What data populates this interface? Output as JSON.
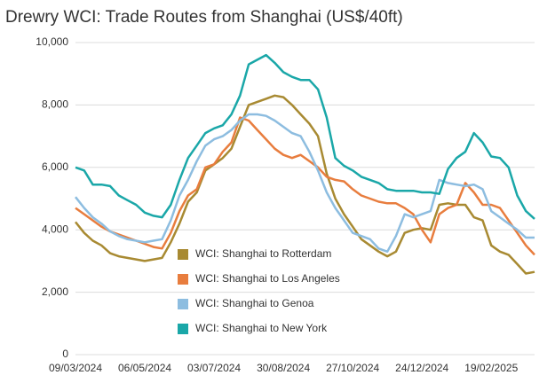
{
  "chart_data": {
    "type": "line",
    "title": "Drewry WCI: Trade Routes from Shanghai (US$/40ft)",
    "categories": [
      "09/03/2024",
      null,
      null,
      null,
      null,
      null,
      null,
      null,
      "06/05/2024",
      null,
      null,
      null,
      null,
      null,
      null,
      null,
      "03/07/2024",
      null,
      null,
      null,
      null,
      null,
      null,
      null,
      "30/08/2024",
      null,
      null,
      null,
      null,
      null,
      null,
      null,
      "27/10/2024",
      null,
      null,
      null,
      null,
      null,
      null,
      null,
      "24/12/2024",
      null,
      null,
      null,
      null,
      null,
      null,
      null,
      "19/02/2025",
      null,
      null,
      null,
      null,
      null
    ],
    "series": [
      {
        "name": "WCI: Shanghai to Rotterdam",
        "color": "#a88a32",
        "values": [
          4250,
          3900,
          3650,
          3500,
          3250,
          3150,
          3100,
          3050,
          3000,
          3050,
          3100,
          3600,
          4200,
          4900,
          5200,
          5900,
          6100,
          6300,
          6600,
          7300,
          8000,
          8100,
          8200,
          8300,
          8250,
          8000,
          7700,
          7400,
          7000,
          5800,
          5000,
          4500,
          4100,
          3700,
          3500,
          3300,
          3150,
          3300,
          3900,
          4000,
          4050,
          4000,
          4800,
          4850,
          4800,
          4800,
          4400,
          4300,
          3500,
          3300,
          3200,
          2900,
          2600,
          2650
        ]
      },
      {
        "name": "WCI: Shanghai to Los Angeles",
        "color": "#e87d3e",
        "values": [
          4700,
          4500,
          4300,
          4100,
          3950,
          3850,
          3750,
          3650,
          3550,
          3450,
          3400,
          3900,
          4600,
          5100,
          5300,
          6000,
          6100,
          6500,
          6800,
          7600,
          7500,
          7200,
          6900,
          6600,
          6400,
          6300,
          6400,
          6200,
          6000,
          5700,
          5600,
          5550,
          5300,
          5100,
          5000,
          4900,
          4850,
          4850,
          4700,
          4500,
          4000,
          3600,
          4500,
          4700,
          4800,
          5500,
          5200,
          4800,
          4800,
          4700,
          4300,
          3900,
          3500,
          3200
        ]
      },
      {
        "name": "WCI: Shanghai to Genoa",
        "color": "#8dbde0",
        "values": [
          5050,
          4700,
          4400,
          4200,
          3950,
          3800,
          3700,
          3650,
          3600,
          3650,
          3700,
          4300,
          5100,
          5600,
          6200,
          6700,
          6900,
          7000,
          7200,
          7500,
          7700,
          7700,
          7650,
          7500,
          7300,
          7100,
          7000,
          6500,
          5900,
          5200,
          4700,
          4300,
          3900,
          3800,
          3700,
          3400,
          3300,
          3800,
          4500,
          4400,
          4500,
          4600,
          5600,
          5500,
          5450,
          5400,
          5450,
          5300,
          4600,
          4400,
          4200,
          4000,
          3750,
          3750
        ]
      },
      {
        "name": "WCI: Shanghai to New York",
        "color": "#1aa7a8",
        "values": [
          6000,
          5900,
          5450,
          5450,
          5400,
          5100,
          4950,
          4800,
          4550,
          4450,
          4400,
          4800,
          5600,
          6300,
          6700,
          7100,
          7250,
          7350,
          7700,
          8300,
          9300,
          9450,
          9600,
          9350,
          9050,
          8900,
          8800,
          8800,
          8500,
          7600,
          6300,
          6050,
          5900,
          5700,
          5600,
          5500,
          5300,
          5250,
          5250,
          5250,
          5200,
          5200,
          5150,
          5950,
          6300,
          6500,
          7100,
          6800,
          6350,
          6300,
          6000,
          5100,
          4600,
          4350
        ]
      }
    ],
    "ylim": [
      0,
      10000
    ],
    "yticks": [
      0,
      {
        "value": 2000,
        "label": "2,000"
      },
      {
        "value": 4000,
        "label": "4,000"
      },
      {
        "value": 6000,
        "label": "6,000"
      },
      {
        "value": 8000,
        "label": "8,000"
      },
      {
        "value": 10000,
        "label": "10,000"
      }
    ],
    "grid": true
  }
}
